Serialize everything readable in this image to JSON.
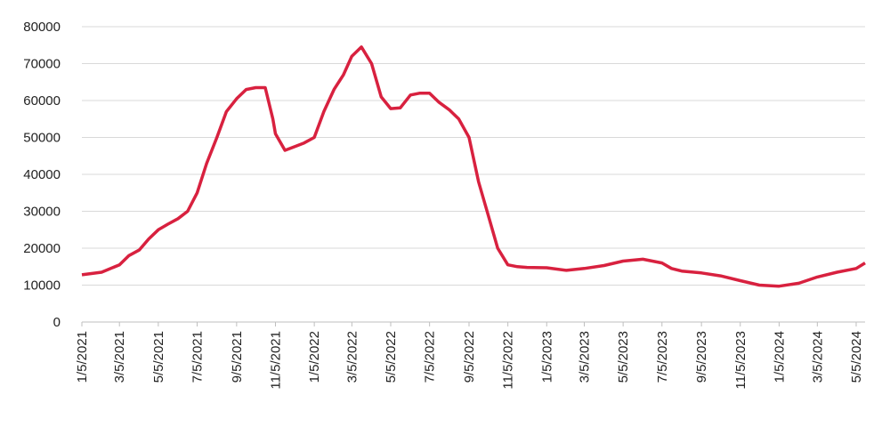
{
  "chart_data": {
    "type": "line",
    "x": [
      "1/5/2021",
      "2/5/2021",
      "3/5/2021",
      "3/20/2021",
      "4/5/2021",
      "4/20/2021",
      "5/5/2021",
      "5/20/2021",
      "6/5/2021",
      "6/20/2021",
      "7/5/2021",
      "7/20/2021",
      "8/5/2021",
      "8/20/2021",
      "9/5/2021",
      "9/20/2021",
      "10/5/2021",
      "10/20/2021",
      "11/1/2021",
      "11/5/2021",
      "11/20/2021",
      "12/5/2021",
      "12/20/2021",
      "1/5/2022",
      "1/20/2022",
      "2/5/2022",
      "2/20/2022",
      "3/5/2022",
      "3/20/2022",
      "4/5/2022",
      "4/20/2022",
      "5/5/2022",
      "5/20/2022",
      "6/5/2022",
      "6/20/2022",
      "7/5/2022",
      "7/20/2022",
      "8/5/2022",
      "8/20/2022",
      "9/5/2022",
      "9/20/2022",
      "10/5/2022",
      "10/20/2022",
      "11/5/2022",
      "11/20/2022",
      "12/5/2022",
      "1/5/2023",
      "2/5/2023",
      "3/5/2023",
      "4/5/2023",
      "5/5/2023",
      "6/5/2023",
      "7/5/2023",
      "7/20/2023",
      "8/5/2023",
      "9/5/2023",
      "10/5/2023",
      "11/5/2023",
      "12/5/2023",
      "1/5/2024",
      "2/5/2024",
      "3/5/2024",
      "4/5/2024",
      "5/5/2024",
      "5/19/2024"
    ],
    "series": [
      {
        "color": "#d8213f",
        "values": [
          12800,
          13500,
          15500,
          18000,
          19500,
          22500,
          25000,
          26500,
          28000,
          30000,
          35000,
          43000,
          50000,
          57000,
          60500,
          63000,
          63500,
          63500,
          55000,
          51000,
          46500,
          47500,
          48500,
          50000,
          57000,
          63000,
          67000,
          72000,
          74500,
          70000,
          61000,
          57800,
          58000,
          61500,
          62000,
          62000,
          59500,
          57500,
          55000,
          50000,
          38000,
          29000,
          20000,
          15500,
          15000,
          14800,
          14700,
          14000,
          14500,
          15300,
          16500,
          17000,
          16000,
          14500,
          13800,
          13300,
          12500,
          11200,
          10000,
          9700,
          10500,
          12200,
          13500,
          14500,
          16000
        ]
      }
    ],
    "xlim": [
      "1/5/2021",
      "5/19/2024"
    ],
    "xticks": [
      "1/5/2021",
      "3/5/2021",
      "5/5/2021",
      "7/5/2021",
      "9/5/2021",
      "11/5/2021",
      "1/5/2022",
      "3/5/2022",
      "5/5/2022",
      "7/5/2022",
      "9/5/2022",
      "11/5/2022",
      "1/5/2023",
      "3/5/2023",
      "5/5/2023",
      "7/5/2023",
      "9/5/2023",
      "11/5/2023",
      "1/5/2024",
      "3/5/2024",
      "5/5/2024"
    ],
    "ylim": [
      0,
      80000
    ],
    "yticks": [
      0,
      10000,
      20000,
      30000,
      40000,
      50000,
      60000,
      70000,
      80000
    ],
    "grid": true
  }
}
